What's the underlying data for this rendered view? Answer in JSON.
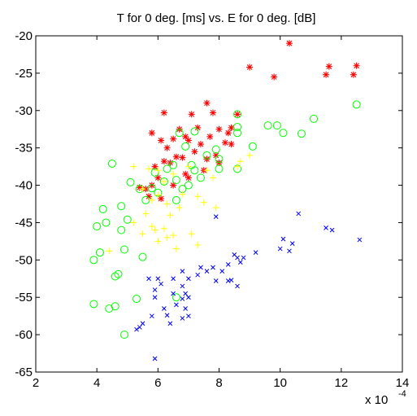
{
  "chart_data": {
    "type": "scatter",
    "title": "T for 0 deg. [ms] vs. E for 0 deg. [dB]",
    "xlabel": "",
    "ylabel": "",
    "x_multiplier_label": "x 10",
    "x_multiplier_exponent": "-4",
    "xlim": [
      2,
      14
    ],
    "ylim": [
      -65,
      -20
    ],
    "x_ticks": [
      2,
      4,
      6,
      8,
      10,
      12,
      14
    ],
    "x_tick_labels": [
      "2",
      "4",
      "6",
      "8",
      "10",
      "12",
      "14"
    ],
    "y_ticks": [
      -65,
      -60,
      -55,
      -50,
      -45,
      -40,
      -35,
      -30,
      -25,
      -20
    ],
    "y_tick_labels": [
      "-65",
      "-60",
      "-55",
      "-50",
      "-45",
      "-40",
      "-35",
      "-30",
      "-25",
      "-20"
    ],
    "grid": false,
    "legend": "none",
    "series": [
      {
        "marker": "star",
        "color": "#ff0000",
        "points": [
          [
            10.3,
            -21.0
          ],
          [
            11.6,
            -24.1
          ],
          [
            12.5,
            -24.0
          ],
          [
            9.0,
            -24.2
          ],
          [
            9.8,
            -25.5
          ],
          [
            11.5,
            -25.2
          ],
          [
            12.4,
            -25.2
          ],
          [
            6.2,
            -30.3
          ],
          [
            7.1,
            -30.5
          ],
          [
            8.6,
            -30.5
          ],
          [
            7.6,
            -29.0
          ],
          [
            7.8,
            -30.3
          ],
          [
            7.3,
            -32.3
          ],
          [
            8.0,
            -32.5
          ],
          [
            8.3,
            -33.0
          ],
          [
            8.4,
            -32.3
          ],
          [
            6.7,
            -32.5
          ],
          [
            6.5,
            -33.8
          ],
          [
            7.0,
            -34.0
          ],
          [
            7.4,
            -34.5
          ],
          [
            6.9,
            -33.5
          ],
          [
            5.8,
            -33.0
          ],
          [
            6.1,
            -34.0
          ],
          [
            6.3,
            -35.0
          ],
          [
            7.7,
            -33.5
          ],
          [
            8.2,
            -34.3
          ],
          [
            8.4,
            -34.5
          ],
          [
            7.9,
            -36.0
          ],
          [
            6.6,
            -36.2
          ],
          [
            6.4,
            -37.0
          ],
          [
            7.2,
            -35.5
          ],
          [
            6.2,
            -36.8
          ],
          [
            5.9,
            -37.5
          ],
          [
            6.8,
            -36.3
          ],
          [
            7.6,
            -36.5
          ],
          [
            8.0,
            -37.0
          ],
          [
            6.9,
            -38.5
          ],
          [
            6.0,
            -39.0
          ],
          [
            5.8,
            -40.0
          ],
          [
            5.6,
            -40.5
          ],
          [
            5.4,
            -40.3
          ],
          [
            5.7,
            -41.5
          ],
          [
            6.1,
            -41.8
          ],
          [
            6.5,
            -40.0
          ],
          [
            7.0,
            -39.0
          ],
          [
            7.5,
            -38.0
          ]
        ]
      },
      {
        "marker": "circle",
        "color": "#00ff00",
        "points": [
          [
            12.5,
            -29.2
          ],
          [
            11.1,
            -31.1
          ],
          [
            8.6,
            -30.5
          ],
          [
            8.6,
            -32.2
          ],
          [
            9.6,
            -32.0
          ],
          [
            9.9,
            -32.0
          ],
          [
            10.1,
            -33.0
          ],
          [
            10.7,
            -33.1
          ],
          [
            8.6,
            -33.0
          ],
          [
            7.2,
            -32.8
          ],
          [
            6.7,
            -33.0
          ],
          [
            9.1,
            -34.8
          ],
          [
            7.9,
            -35.2
          ],
          [
            6.9,
            -34.8
          ],
          [
            7.6,
            -36.0
          ],
          [
            8.0,
            -36.5
          ],
          [
            7.1,
            -37.3
          ],
          [
            6.5,
            -37.3
          ],
          [
            7.2,
            -38.0
          ],
          [
            8.0,
            -37.8
          ],
          [
            8.6,
            -37.8
          ],
          [
            6.3,
            -37.8
          ],
          [
            5.9,
            -38.3
          ],
          [
            7.4,
            -39.0
          ],
          [
            6.6,
            -39.3
          ],
          [
            4.5,
            -37.1
          ],
          [
            5.1,
            -39.6
          ],
          [
            6.2,
            -39.5
          ],
          [
            5.8,
            -40.4
          ],
          [
            5.6,
            -42.0
          ],
          [
            7.0,
            -40.0
          ],
          [
            6.0,
            -41.0
          ],
          [
            6.8,
            -40.5
          ],
          [
            5.4,
            -40.5
          ],
          [
            6.6,
            -42.0
          ],
          [
            4.8,
            -42.8
          ],
          [
            4.2,
            -43.2
          ],
          [
            5.0,
            -44.6
          ],
          [
            4.3,
            -45.0
          ],
          [
            4.0,
            -45.5
          ],
          [
            4.8,
            -46.0
          ],
          [
            4.1,
            -49.0
          ],
          [
            4.9,
            -48.6
          ],
          [
            3.9,
            -50.0
          ],
          [
            5.5,
            -49.6
          ],
          [
            4.6,
            -52.2
          ],
          [
            4.7,
            -51.9
          ],
          [
            5.3,
            -55.2
          ],
          [
            6.6,
            -55.0
          ],
          [
            3.9,
            -55.9
          ],
          [
            4.6,
            -56.2
          ],
          [
            4.4,
            -56.5
          ],
          [
            4.9,
            -60.0
          ]
        ]
      },
      {
        "marker": "plus",
        "color": "#ffff00",
        "points": [
          [
            8.7,
            -36.8
          ],
          [
            9.0,
            -36.0
          ],
          [
            8.6,
            -37.5
          ],
          [
            7.6,
            -38.0
          ],
          [
            7.0,
            -37.5
          ],
          [
            6.0,
            -38.0
          ],
          [
            5.7,
            -37.8
          ],
          [
            5.2,
            -37.5
          ],
          [
            6.5,
            -38.5
          ],
          [
            7.8,
            -39.0
          ],
          [
            6.2,
            -39.5
          ],
          [
            5.5,
            -40.5
          ],
          [
            6.0,
            -41.3
          ],
          [
            6.8,
            -41.2
          ],
          [
            7.3,
            -41.5
          ],
          [
            5.8,
            -42.0
          ],
          [
            6.3,
            -42.5
          ],
          [
            7.5,
            -42.3
          ],
          [
            6.7,
            -43.0
          ],
          [
            7.9,
            -43.0
          ],
          [
            5.6,
            -43.8
          ],
          [
            6.4,
            -44.0
          ],
          [
            5.2,
            -45.0
          ],
          [
            5.8,
            -45.5
          ],
          [
            6.2,
            -45.8
          ],
          [
            5.5,
            -46.5
          ],
          [
            5.9,
            -46.0
          ],
          [
            6.3,
            -47.0
          ],
          [
            6.5,
            -46.7
          ],
          [
            7.1,
            -46.5
          ],
          [
            6.0,
            -47.5
          ],
          [
            6.6,
            -48.5
          ],
          [
            7.3,
            -48.0
          ],
          [
            4.4,
            -48.8
          ]
        ]
      },
      {
        "marker": "x",
        "color": "#0000ff",
        "points": [
          [
            12.6,
            -47.3
          ],
          [
            11.5,
            -45.7
          ],
          [
            11.7,
            -46.0
          ],
          [
            10.6,
            -43.8
          ],
          [
            10.1,
            -47.2
          ],
          [
            10.4,
            -47.8
          ],
          [
            10.0,
            -48.5
          ],
          [
            10.3,
            -48.8
          ],
          [
            7.9,
            -44.2
          ],
          [
            9.2,
            -49.0
          ],
          [
            8.5,
            -49.3
          ],
          [
            8.6,
            -49.7
          ],
          [
            8.8,
            -49.7
          ],
          [
            8.7,
            -50.3
          ],
          [
            8.3,
            -50.6
          ],
          [
            7.8,
            -51.0
          ],
          [
            7.4,
            -51.0
          ],
          [
            7.6,
            -51.5
          ],
          [
            8.1,
            -51.5
          ],
          [
            7.3,
            -52.0
          ],
          [
            6.8,
            -51.5
          ],
          [
            7.0,
            -52.5
          ],
          [
            6.5,
            -52.5
          ],
          [
            6.0,
            -52.5
          ],
          [
            7.9,
            -52.8
          ],
          [
            8.3,
            -52.8
          ],
          [
            8.4,
            -52.7
          ],
          [
            8.6,
            -53.5
          ],
          [
            5.7,
            -52.5
          ],
          [
            6.1,
            -53.2
          ],
          [
            6.8,
            -53.5
          ],
          [
            5.9,
            -54.0
          ],
          [
            6.5,
            -54.5
          ],
          [
            6.9,
            -54.5
          ],
          [
            6.8,
            -55.2
          ],
          [
            7.0,
            -55.0
          ],
          [
            5.9,
            -55.0
          ],
          [
            6.6,
            -56.0
          ],
          [
            6.9,
            -56.5
          ],
          [
            6.2,
            -56.5
          ],
          [
            5.8,
            -57.5
          ],
          [
            6.3,
            -57.4
          ],
          [
            7.0,
            -57.5
          ],
          [
            6.8,
            -57.8
          ],
          [
            6.4,
            -58.5
          ],
          [
            5.5,
            -58.5
          ],
          [
            5.4,
            -59.0
          ],
          [
            5.3,
            -59.3
          ],
          [
            5.9,
            -63.2
          ]
        ]
      }
    ]
  }
}
